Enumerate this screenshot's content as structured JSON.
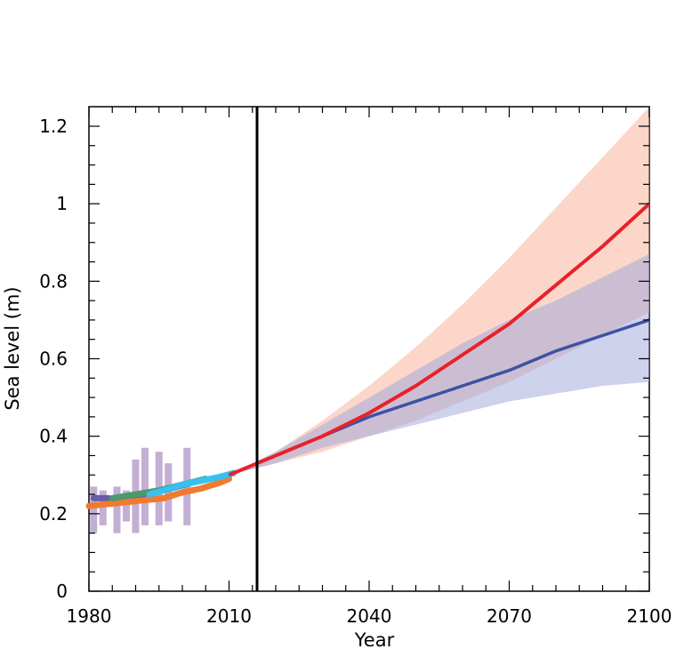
{
  "chart_data": {
    "type": "line",
    "title": "",
    "xlabel": "Year",
    "ylabel": "Sea  level (m)",
    "xlim": [
      1980,
      2100
    ],
    "ylim": [
      0,
      1.25
    ],
    "x_ticks": [
      1980,
      2010,
      2040,
      2070,
      2100
    ],
    "x_tick_labels": [
      "1980",
      "2010",
      "2040",
      "2070",
      "2100"
    ],
    "y_ticks": [
      0,
      0.2,
      0.4,
      0.6,
      0.8,
      1,
      1.2
    ],
    "y_tick_labels": [
      "0",
      "0.2",
      "0.4",
      "0.6",
      "0.8",
      "1",
      "1.2"
    ],
    "vline_x": 2016,
    "grid": false,
    "legend": "none",
    "colors": {
      "high": "#e8212a",
      "high_band": "#f7b49c",
      "low": "#3f51a5",
      "low_band": "#9ea5dc",
      "obs_bars": "#b9a0cc",
      "obs_purple": "#6a5ba8",
      "obs_orange": "#f07a30",
      "obs_green": "#4a9a6a",
      "obs_cyan": "#38c0f0"
    },
    "series": [
      {
        "x": [
          2010,
          2020,
          2030,
          2040,
          2050,
          2060,
          2070,
          2080,
          2090,
          2100
        ],
        "values": [
          0.3,
          0.35,
          0.4,
          0.46,
          0.53,
          0.61,
          0.69,
          0.79,
          0.89,
          1.0
        ],
        "band_low": [
          0.3,
          0.33,
          0.36,
          0.4,
          0.44,
          0.49,
          0.54,
          0.6,
          0.66,
          0.72
        ],
        "band_high": [
          0.3,
          0.36,
          0.44,
          0.53,
          0.63,
          0.74,
          0.86,
          0.99,
          1.12,
          1.25
        ],
        "color_key": "high",
        "band_key": "high_band"
      },
      {
        "x": [
          2010,
          2020,
          2030,
          2040,
          2050,
          2060,
          2070,
          2080,
          2090,
          2100
        ],
        "values": [
          0.3,
          0.35,
          0.4,
          0.45,
          0.49,
          0.53,
          0.57,
          0.62,
          0.66,
          0.7
        ],
        "band_low": [
          0.3,
          0.33,
          0.37,
          0.4,
          0.43,
          0.46,
          0.49,
          0.51,
          0.53,
          0.54
        ],
        "band_high": [
          0.3,
          0.36,
          0.43,
          0.5,
          0.57,
          0.64,
          0.7,
          0.75,
          0.81,
          0.87
        ],
        "color_key": "low",
        "band_key": "low_band"
      }
    ],
    "observations": {
      "bars": {
        "x": [
          1981,
          1983,
          1986,
          1988,
          1990,
          1992,
          1995,
          1997,
          2001
        ],
        "low": [
          0.15,
          0.17,
          0.15,
          0.18,
          0.15,
          0.17,
          0.17,
          0.18,
          0.17
        ],
        "high": [
          0.27,
          0.26,
          0.27,
          0.26,
          0.34,
          0.37,
          0.36,
          0.33,
          0.37
        ]
      },
      "lines": [
        {
          "color_key": "obs_purple",
          "x": [
            1981,
            1984,
            1987,
            1990,
            1993,
            1996,
            1999,
            2002
          ],
          "values": [
            0.24,
            0.24,
            0.235,
            0.245,
            0.255,
            0.26,
            0.27,
            0.28
          ]
        },
        {
          "color_key": "obs_orange",
          "x": [
            1980,
            1984,
            1988,
            1992,
            1996,
            2000,
            2004,
            2008,
            2010
          ],
          "values": [
            0.22,
            0.225,
            0.23,
            0.235,
            0.24,
            0.255,
            0.265,
            0.28,
            0.29
          ]
        },
        {
          "color_key": "obs_green",
          "x": [
            1985,
            1990,
            1995,
            2000,
            2005
          ],
          "values": [
            0.24,
            0.25,
            0.26,
            0.275,
            0.29
          ]
        },
        {
          "color_key": "obs_cyan",
          "x": [
            1993,
            1996,
            2000,
            2004,
            2008,
            2011
          ],
          "values": [
            0.25,
            0.26,
            0.275,
            0.285,
            0.295,
            0.305
          ]
        }
      ]
    }
  }
}
